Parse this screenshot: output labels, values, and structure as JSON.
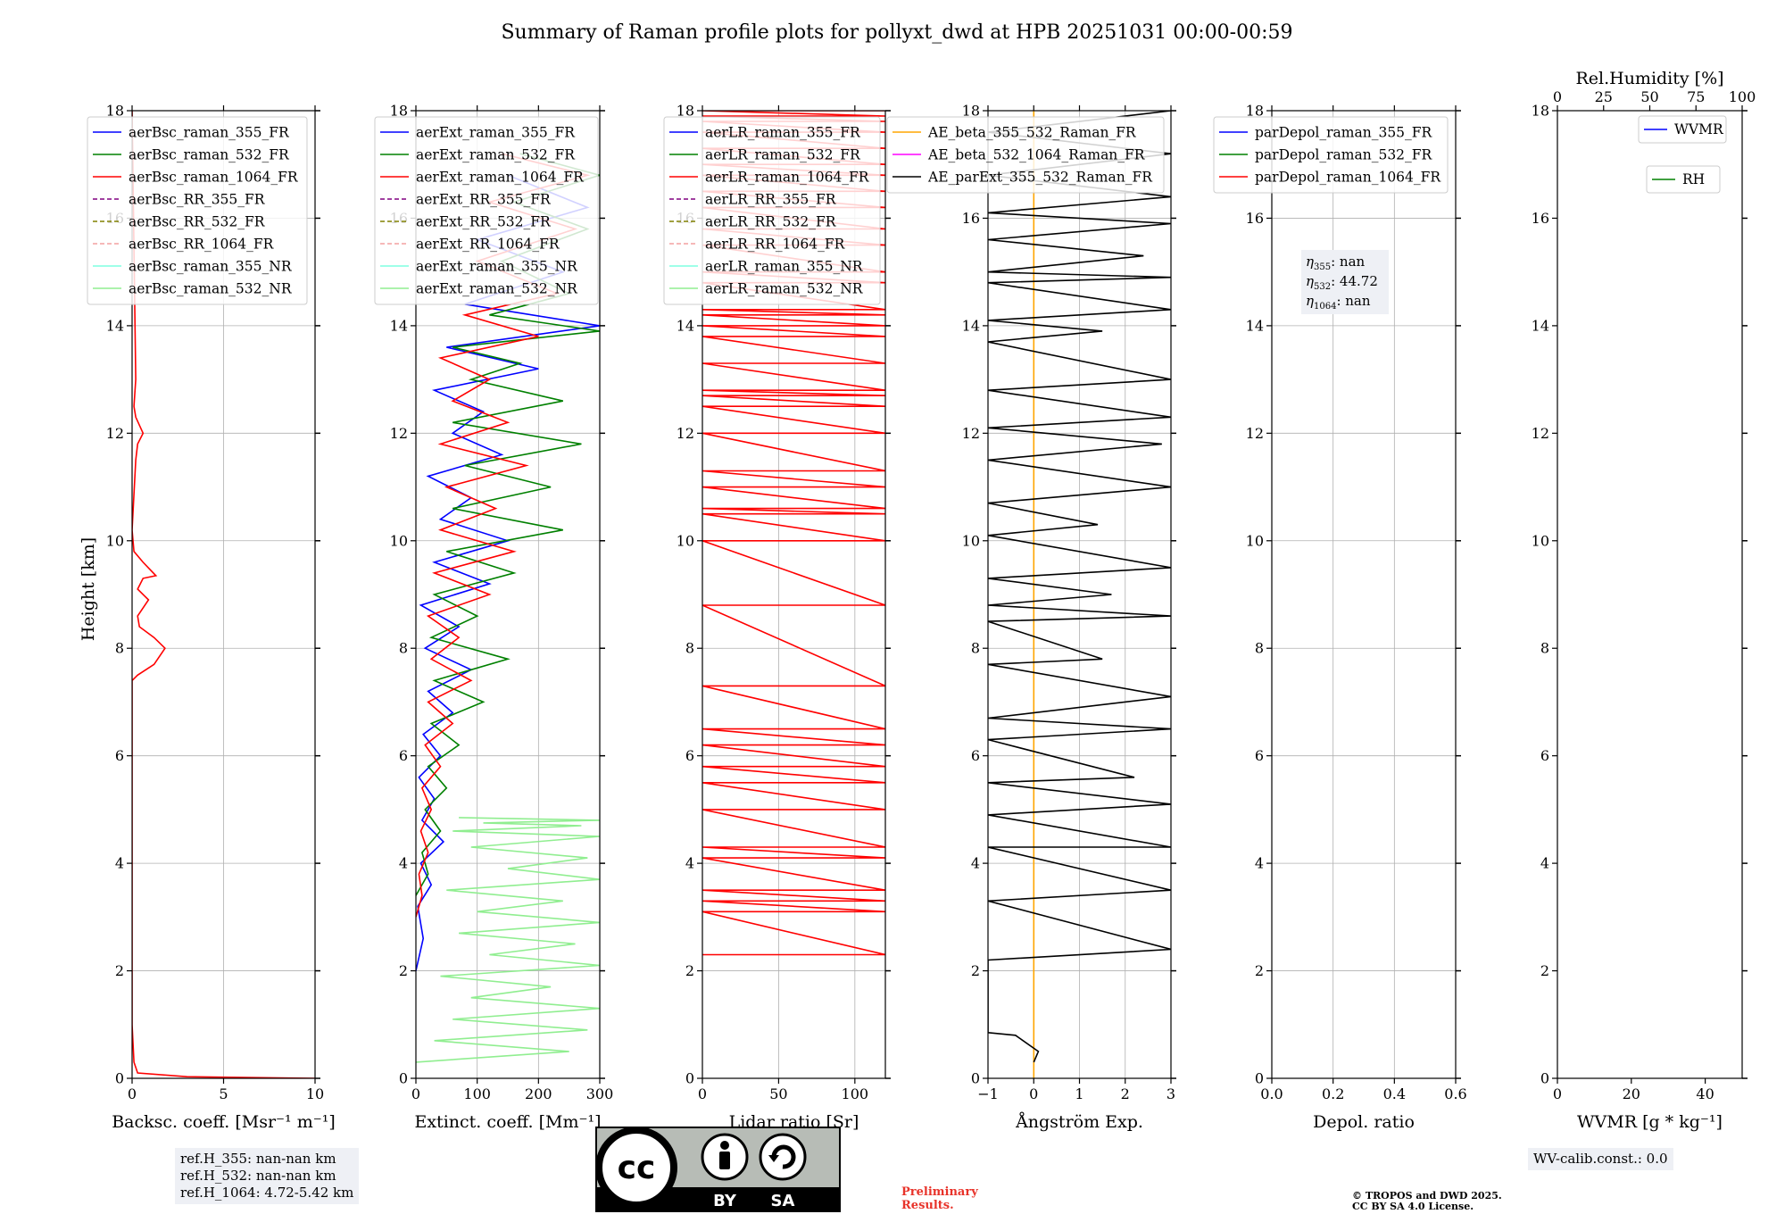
{
  "figure": {
    "title": "Summary of Raman profile plots for pollyxt_dwd at HPB 20251031 00:00-00:59",
    "ylabel": "Height [km]"
  },
  "chart_data": [
    {
      "type": "line",
      "id": "bsc",
      "xlabel": "Backsc. coeff. [Msr⁻¹ m⁻¹]",
      "xlim": [
        0,
        10
      ],
      "xticks": [
        0,
        5,
        10
      ],
      "ylim": [
        0,
        18
      ],
      "yticks": [
        0,
        2,
        4,
        6,
        8,
        10,
        12,
        14,
        16,
        18
      ],
      "grid": true,
      "legend_position": "top-left",
      "legend": [
        {
          "label": "aerBsc_raman_355_FR",
          "color": "#0000ff",
          "dash": "solid"
        },
        {
          "label": "aerBsc_raman_532_FR",
          "color": "#008000",
          "dash": "solid"
        },
        {
          "label": "aerBsc_raman_1064_FR",
          "color": "#ff0000",
          "dash": "solid"
        },
        {
          "label": "aerBsc_RR_355_FR",
          "color": "#800080",
          "dash": "dashed"
        },
        {
          "label": "aerBsc_RR_532_FR",
          "color": "#808000",
          "dash": "dashed"
        },
        {
          "label": "aerBsc_RR_1064_FR",
          "color": "#f4a0a0",
          "dash": "dashed"
        },
        {
          "label": "aerBsc_raman_355_NR",
          "color": "#7fffe0",
          "dash": "solid"
        },
        {
          "label": "aerBsc_raman_532_NR",
          "color": "#90ee90",
          "dash": "solid"
        }
      ],
      "series": [
        {
          "name": "aerBsc_raman_1064_FR",
          "color": "#ff0000",
          "x": [
            10,
            3,
            0.3,
            0.1,
            0,
            0,
            0,
            0,
            0,
            0.3,
            1.2,
            1.8,
            1.2,
            0.4,
            0.3,
            0.9,
            0.3,
            0.6,
            1.3,
            0.6,
            0.1,
            0,
            0.2,
            0.3,
            0.6,
            0.2,
            0.1,
            0.2,
            0
          ],
          "y": [
            0.0,
            0.03,
            0.1,
            0.3,
            1,
            3,
            5,
            7,
            7.4,
            7.5,
            7.7,
            8.0,
            8.2,
            8.4,
            8.6,
            8.9,
            9.1,
            9.3,
            9.35,
            9.6,
            9.8,
            10.2,
            11.5,
            11.8,
            12.0,
            12.3,
            12.5,
            13,
            18
          ]
        }
      ]
    },
    {
      "type": "line",
      "id": "ext",
      "xlabel": "Extinct. coeff. [Mm⁻¹]",
      "xlim": [
        0,
        300
      ],
      "xticks": [
        0,
        100,
        200,
        300
      ],
      "ylim": [
        0,
        18
      ],
      "yticks": [
        0,
        2,
        4,
        6,
        8,
        10,
        12,
        14,
        16,
        18
      ],
      "grid": true,
      "legend_position": "top-left",
      "legend": [
        {
          "label": "aerExt_raman_355_FR",
          "color": "#0000ff",
          "dash": "solid"
        },
        {
          "label": "aerExt_raman_532_FR",
          "color": "#008000",
          "dash": "solid"
        },
        {
          "label": "aerExt_raman_1064_FR",
          "color": "#ff0000",
          "dash": "solid"
        },
        {
          "label": "aerExt_RR_355_FR",
          "color": "#800080",
          "dash": "dashed"
        },
        {
          "label": "aerExt_RR_532_FR",
          "color": "#808000",
          "dash": "dashed"
        },
        {
          "label": "aerExt_RR_1064_FR",
          "color": "#f4a0a0",
          "dash": "dashed"
        },
        {
          "label": "aerExt_raman_355_NR",
          "color": "#7fffe0",
          "dash": "solid"
        },
        {
          "label": "aerExt_raman_532_NR",
          "color": "#90ee90",
          "dash": "solid"
        }
      ],
      "series": [
        {
          "name": "aerExt_raman_355_FR",
          "color": "#0000ff",
          "x": [
            0,
            12,
            3,
            25,
            8,
            45,
            10,
            30,
            5,
            40,
            12,
            60,
            20,
            90,
            15,
            70,
            8,
            120,
            30,
            150,
            40,
            90,
            20,
            140,
            60,
            110,
            30,
            200,
            50,
            300,
            80,
            240,
            100,
            280,
            150
          ],
          "y": [
            2.0,
            2.6,
            3.2,
            3.6,
            4.0,
            4.4,
            4.8,
            5.2,
            5.6,
            6.0,
            6.4,
            6.8,
            7.2,
            7.6,
            8.0,
            8.4,
            8.8,
            9.2,
            9.6,
            10.0,
            10.4,
            10.8,
            11.2,
            11.6,
            12.0,
            12.4,
            12.8,
            13.2,
            13.6,
            14.0,
            14.4,
            15.0,
            15.6,
            16.2,
            16.8
          ]
        },
        {
          "name": "aerExt_raman_532_FR",
          "color": "#008000",
          "x": [
            0,
            20,
            10,
            40,
            15,
            50,
            20,
            70,
            25,
            110,
            30,
            150,
            25,
            100,
            30,
            160,
            50,
            240,
            60,
            220,
            80,
            270,
            60,
            240,
            90,
            170,
            60,
            300,
            120,
            250,
            140,
            280,
            160,
            300,
            170
          ],
          "y": [
            3.4,
            3.8,
            4.2,
            4.6,
            5.0,
            5.4,
            5.8,
            6.2,
            6.6,
            7.0,
            7.4,
            7.8,
            8.2,
            8.6,
            9.0,
            9.4,
            9.8,
            10.2,
            10.6,
            11.0,
            11.4,
            11.8,
            12.2,
            12.6,
            13.0,
            13.3,
            13.6,
            13.9,
            14.2,
            14.6,
            15.2,
            15.8,
            16.3,
            16.8,
            17.2
          ]
        },
        {
          "name": "aerExt_raman_1064_FR",
          "color": "#ff0000",
          "x": [
            0,
            10,
            5,
            20,
            8,
            25,
            10,
            40,
            15,
            60,
            20,
            90,
            25,
            70,
            20,
            120,
            30,
            160,
            40,
            130,
            50,
            180,
            40,
            150,
            60,
            120,
            40,
            200,
            80,
            230,
            100,
            260,
            120,
            280,
            140
          ],
          "y": [
            3.0,
            3.4,
            3.8,
            4.2,
            4.6,
            5.0,
            5.4,
            5.8,
            6.2,
            6.6,
            7.0,
            7.4,
            7.8,
            8.2,
            8.6,
            9.0,
            9.4,
            9.8,
            10.2,
            10.6,
            11.0,
            11.4,
            11.8,
            12.2,
            12.6,
            13.0,
            13.4,
            13.8,
            14.2,
            14.6,
            15.2,
            15.8,
            16.3,
            16.8,
            17.2
          ]
        },
        {
          "name": "aerExt_raman_532_NR",
          "color": "#90ee90",
          "x": [
            0,
            250,
            30,
            280,
            60,
            300,
            90,
            220,
            40,
            300,
            120,
            260,
            70,
            300,
            100,
            240,
            50,
            300,
            150,
            280,
            90,
            300,
            60,
            270,
            110,
            300,
            70
          ],
          "y": [
            0.3,
            0.5,
            0.7,
            0.9,
            1.1,
            1.3,
            1.5,
            1.7,
            1.9,
            2.1,
            2.3,
            2.5,
            2.7,
            2.9,
            3.1,
            3.3,
            3.5,
            3.7,
            3.9,
            4.1,
            4.3,
            4.5,
            4.6,
            4.7,
            4.75,
            4.8,
            4.85
          ]
        }
      ]
    },
    {
      "type": "line",
      "id": "lr",
      "xlabel": "Lidar ratio [Sr]",
      "xlim": [
        0,
        120
      ],
      "xticks": [
        0,
        50,
        100
      ],
      "ylim": [
        0,
        18
      ],
      "yticks": [
        0,
        2,
        4,
        6,
        8,
        10,
        12,
        14,
        16,
        18
      ],
      "grid": true,
      "legend_position": "top-left",
      "legend": [
        {
          "label": "aerLR_raman_355_FR",
          "color": "#0000ff",
          "dash": "solid"
        },
        {
          "label": "aerLR_raman_532_FR",
          "color": "#008000",
          "dash": "solid"
        },
        {
          "label": "aerLR_raman_1064_FR",
          "color": "#ff0000",
          "dash": "solid"
        },
        {
          "label": "aerLR_RR_355_FR",
          "color": "#800080",
          "dash": "dashed"
        },
        {
          "label": "aerLR_RR_532_FR",
          "color": "#808000",
          "dash": "dashed"
        },
        {
          "label": "aerLR_RR_1064_FR",
          "color": "#f4a0a0",
          "dash": "dashed"
        },
        {
          "label": "aerLR_raman_355_NR",
          "color": "#7fffe0",
          "dash": "solid"
        },
        {
          "label": "aerLR_raman_532_NR",
          "color": "#90ee90",
          "dash": "solid"
        }
      ],
      "series": [
        {
          "name": "aerLR_raman_1064_FR",
          "color": "#ff0000",
          "x": [
            0,
            120,
            0,
            120,
            0,
            120,
            0,
            120,
            0,
            120,
            0,
            120,
            0,
            120,
            0,
            120,
            0,
            120,
            0,
            120,
            0,
            120,
            0,
            120,
            0,
            120,
            0,
            120,
            0,
            120,
            0,
            120,
            0,
            120,
            0,
            120,
            0,
            120,
            0,
            120,
            0,
            120,
            0,
            120,
            0,
            120,
            0,
            120,
            0,
            120,
            0,
            120,
            0,
            120,
            0,
            120,
            0,
            120,
            0,
            120,
            0,
            120,
            0,
            120,
            0,
            120,
            0,
            120,
            0,
            120,
            0,
            120,
            0,
            120,
            0,
            120,
            0,
            120,
            0,
            120,
            0
          ],
          "y": [
            2.3,
            2.3,
            3.1,
            3.1,
            3.3,
            3.3,
            3.5,
            3.5,
            4.1,
            4.1,
            4.3,
            4.3,
            5.0,
            5.0,
            5.5,
            5.5,
            5.8,
            5.8,
            6.2,
            6.2,
            6.5,
            6.5,
            7.3,
            7.3,
            8.8,
            8.8,
            10.0,
            10.0,
            10.5,
            10.5,
            10.6,
            10.6,
            11.0,
            11.0,
            11.3,
            11.3,
            12.0,
            12.0,
            12.5,
            12.5,
            12.7,
            12.7,
            12.8,
            12.8,
            13.3,
            13.3,
            13.8,
            13.8,
            14.0,
            14.0,
            14.2,
            14.2,
            14.3,
            14.3,
            14.8,
            14.8,
            15.0,
            15.0,
            15.5,
            15.5,
            15.8,
            15.8,
            16.2,
            16.2,
            16.5,
            16.5,
            16.8,
            16.8,
            17.0,
            17.0,
            17.3,
            17.3,
            17.6,
            17.6,
            17.8,
            17.8,
            17.9,
            17.9,
            18.0,
            18.0,
            18.0
          ]
        }
      ]
    },
    {
      "type": "line",
      "id": "ae",
      "xlabel": "Ångström Exp.",
      "xlim": [
        -1,
        3
      ],
      "xticks": [
        -1,
        0,
        1,
        2,
        3
      ],
      "ylim": [
        0,
        18
      ],
      "yticks": [
        0,
        2,
        4,
        6,
        8,
        10,
        12,
        14,
        16,
        18
      ],
      "grid": true,
      "legend_position": "top-center",
      "legend": [
        {
          "label": "AE_beta_355_532_Raman_FR",
          "color": "#ffa500",
          "dash": "solid"
        },
        {
          "label": "AE_beta_532_1064_Raman_FR",
          "color": "#ff00ff",
          "dash": "solid"
        },
        {
          "label": "AE_parExt_355_532_Raman_FR",
          "color": "#000000",
          "dash": "solid"
        }
      ],
      "series": [
        {
          "name": "AE_beta_355_532_Raman_FR",
          "color": "#ffa500",
          "x": [
            0,
            0
          ],
          "y": [
            0,
            18
          ]
        },
        {
          "name": "AE_parExt_355_532_Raman_FR",
          "color": "#000000",
          "x": [
            0,
            0.1,
            -0.4,
            -1,
            -1,
            3,
            -1,
            3,
            -1,
            3,
            -1,
            3,
            -1,
            2.2,
            -1,
            3,
            -1,
            3,
            -1,
            1.5,
            -1,
            3,
            -1,
            1.7,
            -1,
            3,
            -1,
            1.4,
            -1,
            3,
            -1,
            2.8,
            -1,
            3,
            -1,
            3,
            -1,
            1.5,
            -1,
            3,
            -1,
            3,
            -1,
            2.4,
            -1,
            3,
            -1,
            3,
            -1,
            3,
            -1,
            3
          ],
          "y": [
            0.3,
            0.5,
            0.8,
            0.85,
            2.2,
            2.4,
            3.3,
            3.5,
            4.3,
            4.3,
            4.9,
            5.1,
            5.5,
            5.6,
            6.3,
            6.5,
            6.7,
            7.1,
            7.7,
            7.8,
            8.5,
            8.6,
            8.8,
            9.0,
            9.3,
            9.5,
            10.1,
            10.3,
            10.7,
            11.0,
            11.5,
            11.8,
            12.1,
            12.3,
            12.8,
            13.0,
            13.7,
            13.9,
            14.1,
            14.3,
            14.8,
            14.9,
            15.0,
            15.3,
            15.6,
            15.9,
            16.1,
            16.4,
            16.8,
            17.2,
            17.6,
            18.0
          ]
        }
      ]
    },
    {
      "type": "line",
      "id": "depol",
      "xlabel": "Depol. ratio",
      "xlim": [
        0,
        0.6
      ],
      "xticks": [
        0.0,
        0.2,
        0.4,
        0.6
      ],
      "xtick_labels": [
        "0.0",
        "0.2",
        "0.4",
        "0.6"
      ],
      "ylim": [
        0,
        18
      ],
      "yticks": [
        0,
        2,
        4,
        6,
        8,
        10,
        12,
        14,
        16,
        18
      ],
      "grid": true,
      "legend_position": "top-left",
      "legend": [
        {
          "label": "parDepol_raman_355_FR",
          "color": "#0000ff",
          "dash": "solid"
        },
        {
          "label": "parDepol_raman_532_FR",
          "color": "#008000",
          "dash": "solid"
        },
        {
          "label": "parDepol_raman_1064_FR",
          "color": "#ff0000",
          "dash": "solid"
        }
      ],
      "annotations": {
        "eta355": {
          "label": "355",
          "value": ": nan"
        },
        "eta532": {
          "label": "532",
          "value": ": 44.72"
        },
        "eta1064": {
          "label": "1064",
          "value": ": nan"
        }
      },
      "series": []
    },
    {
      "type": "line",
      "id": "wv",
      "xlabel": "WVMR [g * kg⁻¹]",
      "xlim": [
        0,
        50
      ],
      "xticks": [
        0,
        20,
        40
      ],
      "ylim": [
        0,
        18
      ],
      "yticks": [
        0,
        2,
        4,
        6,
        8,
        10,
        12,
        14,
        16,
        18
      ],
      "grid": false,
      "secondary_xlabel": "Rel.Humidity [%]",
      "secondary_xlim": [
        0,
        100
      ],
      "secondary_xticks": [
        0,
        25,
        50,
        75,
        100
      ],
      "legend_position": "top-right",
      "legend": [
        {
          "label": "WVMR",
          "color": "#0000ff",
          "dash": "solid"
        },
        {
          "label": "RH",
          "color": "#008000",
          "dash": "solid"
        }
      ],
      "series": []
    }
  ],
  "footer": {
    "ref_lines": [
      "ref.H_355: nan-nan km",
      "ref.H_532: nan-nan km",
      "ref.H_1064: 4.72-5.42 km"
    ],
    "cc_text": "cc",
    "by_label": "BY",
    "sa_label": "SA",
    "preliminary_lines": [
      "Preliminary",
      "Results."
    ],
    "credit_lines": [
      "© TROPOS and DWD 2025.",
      "CC BY SA 4.0 License."
    ],
    "wv_calib": "WV-calib.const.: 0.0"
  },
  "colors": {
    "grid": "#b0b0b0",
    "legend_border": "#cccccc",
    "info_bg": "#eef0f5",
    "prelim": "#e8332a"
  }
}
